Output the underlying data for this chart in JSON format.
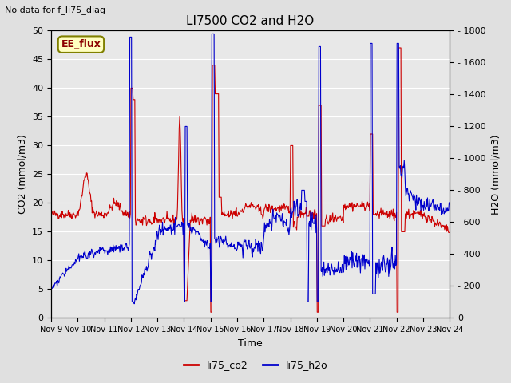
{
  "title": "LI7500 CO2 and H2O",
  "top_left_text": "No data for f_li75_diag",
  "box_label": "EE_flux",
  "xlabel": "Time",
  "ylabel_left": "CO2 (mmol/m3)",
  "ylabel_right": "H2O (mmol/m3)",
  "xlim": [
    0,
    15
  ],
  "ylim_left": [
    0,
    50
  ],
  "ylim_right": [
    0,
    1800
  ],
  "xtick_labels": [
    "Nov 9",
    "Nov 10",
    "Nov 11",
    "Nov 12",
    "Nov 13",
    "Nov 14",
    "Nov 15",
    "Nov 16",
    "Nov 17",
    "Nov 18",
    "Nov 19",
    "Nov 20",
    "Nov 21",
    "Nov 22",
    "Nov 23",
    "Nov 24"
  ],
  "yticks_left": [
    0,
    5,
    10,
    15,
    20,
    25,
    30,
    35,
    40,
    45,
    50
  ],
  "yticks_right": [
    0,
    200,
    400,
    600,
    800,
    1000,
    1200,
    1400,
    1600,
    1800
  ],
  "legend_entries": [
    "li75_co2",
    "li75_h2o"
  ],
  "legend_colors": [
    "#cc0000",
    "#0000cc"
  ],
  "bg_color": "#e0e0e0",
  "plot_bg_color": "#e8e8e8",
  "grid_color": "#ffffff",
  "co2_color": "#cc0000",
  "h2o_color": "#0000cc",
  "num_days": 15
}
